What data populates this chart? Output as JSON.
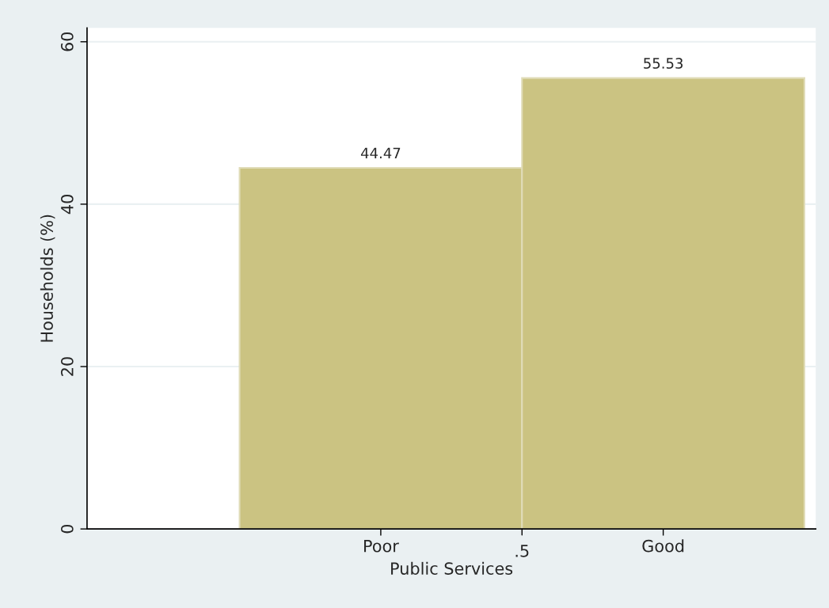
{
  "chart_data": {
    "type": "bar",
    "xlabel": "Public Services",
    "ylabel": "Households (%)",
    "categories": [
      "Poor",
      "Good"
    ],
    "values": [
      44.47,
      55.53
    ],
    "color": "#cbc382",
    "data_labels": true,
    "annotations": [
      ".5"
    ],
    "ylim": [
      0,
      61.7
    ],
    "yticks": [
      0,
      20,
      40,
      60
    ],
    "grid": "y"
  }
}
